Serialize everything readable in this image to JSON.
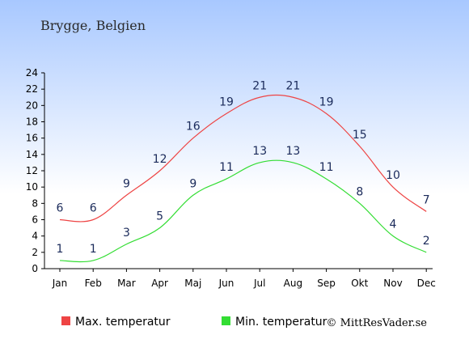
{
  "title": "Brygge, Belgien",
  "copyright": "© MittResVader.se",
  "colors": {
    "max_series": "#ee4444",
    "min_series": "#33dd33",
    "label_text": "#1a2a5a",
    "sky_top": "#a8c8ff",
    "sky_bottom": "#ffffff"
  },
  "chart_data": {
    "type": "line",
    "categories": [
      "Jan",
      "Feb",
      "Mar",
      "Apr",
      "Maj",
      "Jun",
      "Jul",
      "Aug",
      "Sep",
      "Okt",
      "Nov",
      "Dec"
    ],
    "series": [
      {
        "name": "Max. temperatur",
        "values": [
          6,
          6,
          9,
          12,
          16,
          19,
          21,
          21,
          19,
          15,
          10,
          7
        ]
      },
      {
        "name": "Min. temperatur",
        "values": [
          1,
          1,
          3,
          5,
          9,
          11,
          13,
          13,
          11,
          8,
          4,
          2
        ]
      }
    ],
    "y_ticks": [
      0,
      2,
      4,
      6,
      8,
      10,
      12,
      14,
      16,
      18,
      20,
      22,
      24
    ],
    "ylim": [
      0,
      24
    ],
    "grid": false,
    "legend_position": "bottom"
  }
}
